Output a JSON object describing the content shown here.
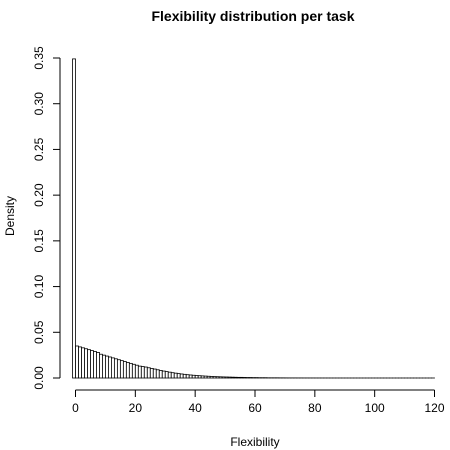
{
  "chart_data": {
    "type": "bar",
    "title": "Flexibility distribution per task",
    "xlabel": "Flexibility",
    "ylabel": "Density",
    "xlim": [
      0,
      120
    ],
    "ylim": [
      0,
      0.35
    ],
    "xticks": [
      "0",
      "20",
      "40",
      "60",
      "80",
      "100",
      "120"
    ],
    "yticks": [
      "0.00",
      "0.05",
      "0.10",
      "0.15",
      "0.20",
      "0.25",
      "0.30",
      "0.35"
    ],
    "grid": false,
    "bin_width": 1,
    "x": [
      -1,
      0,
      1,
      2,
      3,
      4,
      5,
      6,
      7,
      8,
      9,
      10,
      11,
      12,
      13,
      14,
      15,
      16,
      17,
      18,
      19,
      20,
      21,
      22,
      23,
      24,
      25,
      26,
      27,
      28,
      29,
      30,
      31,
      32,
      33,
      34,
      35,
      36,
      37,
      38,
      39,
      40,
      41,
      42,
      43,
      44,
      45,
      46,
      47,
      48,
      49,
      50,
      51,
      52,
      53,
      54,
      55,
      56,
      57,
      58,
      59,
      60,
      61,
      62,
      63,
      64,
      65,
      66,
      67,
      68,
      69,
      70,
      71,
      72,
      73,
      74,
      75,
      76,
      77,
      78,
      79,
      80,
      81,
      82,
      83,
      84,
      85,
      86,
      87,
      88,
      89,
      90,
      91,
      92,
      93,
      94,
      95,
      96,
      97,
      98,
      99,
      100,
      101,
      102,
      103,
      104,
      105,
      106,
      107,
      108,
      109,
      110,
      111,
      112,
      113,
      114,
      115,
      116,
      117,
      118,
      119
    ],
    "values": [
      0.349,
      0.035,
      0.034,
      0.033,
      0.032,
      0.031,
      0.03,
      0.029,
      0.028,
      0.026,
      0.025,
      0.024,
      0.023,
      0.022,
      0.021,
      0.02,
      0.019,
      0.018,
      0.017,
      0.016,
      0.015,
      0.014,
      0.013,
      0.0125,
      0.012,
      0.0112,
      0.0105,
      0.0098,
      0.009,
      0.0083,
      0.0076,
      0.007,
      0.0064,
      0.0058,
      0.0053,
      0.0048,
      0.0044,
      0.004,
      0.0036,
      0.0033,
      0.003,
      0.0027,
      0.0025,
      0.0023,
      0.0021,
      0.0019,
      0.0017,
      0.0015,
      0.0014,
      0.0013,
      0.0012,
      0.0011,
      0.001,
      0.0009,
      0.0008,
      0.0007,
      0.0007,
      0.0006,
      0.0005,
      0.0005,
      0.0004,
      0.0004,
      0.0003,
      0.0003,
      0.0003,
      0.0002,
      0.0002,
      0.0002,
      0.0002,
      0.00015,
      0.00015,
      0.00012,
      0.0001,
      0.0001,
      0.0001,
      8e-05,
      8e-05,
      6e-05,
      6e-05,
      5e-05,
      5e-05,
      4e-05,
      4e-05,
      3e-05,
      3e-05,
      3e-05,
      2e-05,
      2e-05,
      2e-05,
      2e-05,
      1e-05,
      1e-05,
      1e-05,
      1e-05,
      1e-05,
      1e-05,
      1e-05,
      1e-05,
      1e-05,
      1e-05,
      1e-05,
      1e-05,
      1e-05,
      1e-05,
      1e-05,
      1e-05,
      1e-05,
      1e-05,
      1e-05,
      1e-05,
      1e-05,
      1e-05,
      1e-05,
      1e-05,
      1e-05,
      1e-05,
      1e-05,
      1e-05,
      1e-05,
      1e-05,
      1e-05
    ]
  }
}
